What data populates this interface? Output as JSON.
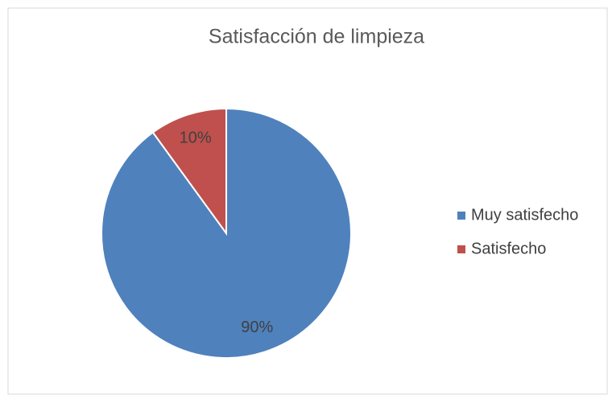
{
  "chart_data": {
    "type": "pie",
    "title": "Satisfacción de limpieza",
    "categories": [
      "Muy satisfecho",
      "Satisfecho"
    ],
    "values": [
      90,
      10
    ],
    "value_labels": [
      "90%",
      "10%"
    ],
    "colors": [
      "#4f81bd",
      "#c0504d"
    ],
    "legend": "right"
  }
}
